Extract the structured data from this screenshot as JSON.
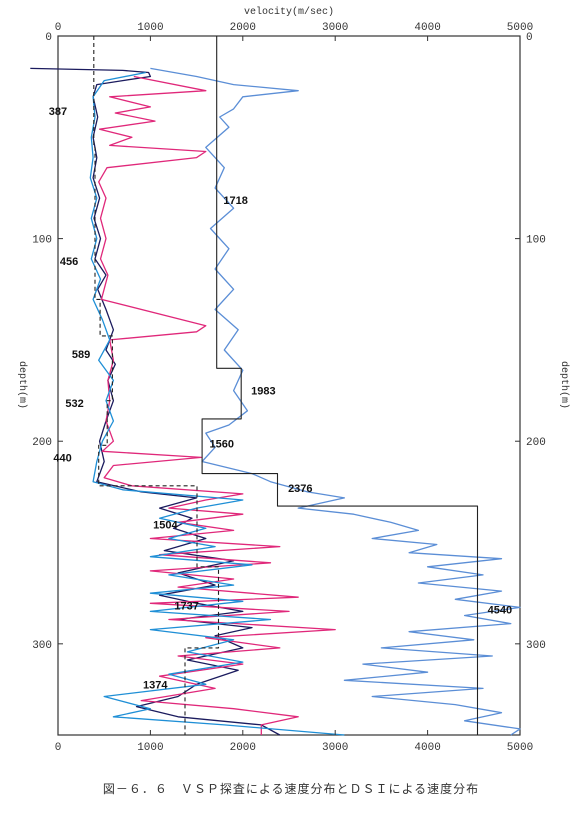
{
  "chart_data": {
    "type": "line",
    "title": "velocity(m/sec)",
    "xlabel": "velocity(m/sec)",
    "ylabel": "depth(m)",
    "xlim": [
      0,
      5000
    ],
    "ylim": [
      0,
      345
    ],
    "y_inverted": true,
    "x_ticks": [
      "0",
      "1000",
      "2000",
      "3000",
      "4000",
      "5000"
    ],
    "y_ticks": [
      "0",
      "100",
      "200",
      "300"
    ],
    "grid": false,
    "series": [
      {
        "color": "#1b1b5e",
        "points": [
          [
            -300,
            16
          ],
          [
            700,
            17
          ],
          [
            980,
            18
          ],
          [
            1000,
            20
          ],
          [
            700,
            22
          ],
          [
            420,
            24
          ],
          [
            380,
            30
          ],
          [
            430,
            40
          ],
          [
            380,
            50
          ],
          [
            420,
            60
          ],
          [
            380,
            70
          ],
          [
            450,
            80
          ],
          [
            390,
            90
          ],
          [
            460,
            100
          ],
          [
            400,
            110
          ],
          [
            520,
            118
          ],
          [
            430,
            125
          ],
          [
            520,
            135
          ],
          [
            600,
            145
          ],
          [
            520,
            155
          ],
          [
            620,
            162
          ],
          [
            540,
            170
          ],
          [
            600,
            180
          ],
          [
            520,
            190
          ],
          [
            450,
            200
          ],
          [
            500,
            210
          ],
          [
            420,
            220
          ],
          [
            900,
            225
          ],
          [
            1500,
            228
          ],
          [
            1100,
            233
          ],
          [
            1450,
            238
          ],
          [
            1250,
            243
          ],
          [
            1600,
            248
          ],
          [
            1150,
            254
          ],
          [
            1900,
            259
          ],
          [
            1300,
            265
          ],
          [
            1700,
            271
          ],
          [
            1100,
            276
          ],
          [
            1500,
            280
          ],
          [
            2000,
            284
          ],
          [
            1300,
            288
          ],
          [
            2100,
            292
          ],
          [
            1700,
            296
          ],
          [
            2000,
            302
          ],
          [
            1400,
            308
          ],
          [
            1950,
            313
          ],
          [
            1500,
            320
          ],
          [
            1300,
            326
          ],
          [
            850,
            331
          ],
          [
            1300,
            336
          ],
          [
            2200,
            340
          ],
          [
            2400,
            345
          ]
        ]
      },
      {
        "color": "#e0287a",
        "points": [
          [
            820,
            20
          ],
          [
            1600,
            27
          ],
          [
            560,
            30
          ],
          [
            1000,
            35
          ],
          [
            620,
            38
          ],
          [
            1050,
            42
          ],
          [
            450,
            46
          ],
          [
            800,
            50
          ],
          [
            560,
            54
          ],
          [
            1600,
            57
          ],
          [
            1500,
            60
          ],
          [
            530,
            65
          ],
          [
            440,
            72
          ],
          [
            520,
            80
          ],
          [
            460,
            90
          ],
          [
            520,
            100
          ],
          [
            460,
            110
          ],
          [
            540,
            118
          ],
          [
            470,
            130
          ],
          [
            1600,
            143
          ],
          [
            1500,
            146
          ],
          [
            560,
            150
          ],
          [
            600,
            160
          ],
          [
            540,
            170
          ],
          [
            560,
            180
          ],
          [
            520,
            190
          ],
          [
            600,
            200
          ],
          [
            480,
            205
          ],
          [
            1550,
            208
          ],
          [
            600,
            212
          ],
          [
            500,
            218
          ],
          [
            800,
            222
          ],
          [
            2000,
            226
          ],
          [
            1600,
            229
          ],
          [
            1200,
            233
          ],
          [
            2000,
            236
          ],
          [
            1300,
            240
          ],
          [
            1900,
            244
          ],
          [
            1000,
            248
          ],
          [
            2400,
            252
          ],
          [
            1100,
            256
          ],
          [
            2300,
            260
          ],
          [
            1000,
            264
          ],
          [
            1900,
            268
          ],
          [
            1300,
            272
          ],
          [
            2600,
            277
          ],
          [
            1000,
            280
          ],
          [
            2500,
            284
          ],
          [
            1200,
            288
          ],
          [
            3000,
            293
          ],
          [
            1600,
            297
          ],
          [
            2400,
            302
          ],
          [
            1300,
            306
          ],
          [
            2000,
            310
          ],
          [
            1100,
            316
          ],
          [
            1700,
            322
          ],
          [
            900,
            328
          ],
          [
            1900,
            332
          ],
          [
            2600,
            336
          ],
          [
            2200,
            340
          ],
          [
            2200,
            345
          ]
        ]
      },
      {
        "color": "#1f8fd6",
        "points": [
          [
            950,
            18
          ],
          [
            500,
            22
          ],
          [
            380,
            30
          ],
          [
            400,
            40
          ],
          [
            360,
            50
          ],
          [
            380,
            60
          ],
          [
            350,
            70
          ],
          [
            420,
            80
          ],
          [
            360,
            90
          ],
          [
            420,
            100
          ],
          [
            360,
            110
          ],
          [
            460,
            120
          ],
          [
            380,
            130
          ],
          [
            480,
            140
          ],
          [
            560,
            150
          ],
          [
            440,
            160
          ],
          [
            600,
            170
          ],
          [
            520,
            180
          ],
          [
            600,
            190
          ],
          [
            480,
            200
          ],
          [
            420,
            210
          ],
          [
            380,
            220
          ],
          [
            700,
            224
          ],
          [
            2000,
            229
          ],
          [
            1500,
            233
          ],
          [
            1100,
            238
          ],
          [
            1600,
            243
          ],
          [
            1200,
            248
          ],
          [
            1700,
            252
          ],
          [
            1000,
            257
          ],
          [
            2100,
            261
          ],
          [
            1200,
            266
          ],
          [
            1900,
            271
          ],
          [
            1000,
            275
          ],
          [
            2000,
            279
          ],
          [
            1000,
            284
          ],
          [
            2300,
            288
          ],
          [
            1000,
            293
          ],
          [
            1900,
            298
          ],
          [
            1400,
            304
          ],
          [
            2000,
            309
          ],
          [
            1200,
            315
          ],
          [
            1600,
            320
          ],
          [
            500,
            326
          ],
          [
            1000,
            332
          ],
          [
            600,
            336
          ],
          [
            1800,
            340
          ],
          [
            3100,
            345
          ]
        ]
      },
      {
        "color": "#5b8ed6",
        "points": [
          [
            1000,
            16
          ],
          [
            1500,
            20
          ],
          [
            1900,
            24
          ],
          [
            2600,
            27
          ],
          [
            2000,
            30
          ],
          [
            1900,
            36
          ],
          [
            1750,
            40
          ],
          [
            1850,
            45
          ],
          [
            1600,
            55
          ],
          [
            1800,
            65
          ],
          [
            1700,
            75
          ],
          [
            1900,
            85
          ],
          [
            1650,
            95
          ],
          [
            1850,
            105
          ],
          [
            1700,
            115
          ],
          [
            1900,
            125
          ],
          [
            1700,
            135
          ],
          [
            1950,
            145
          ],
          [
            1800,
            155
          ],
          [
            2000,
            165
          ],
          [
            1900,
            175
          ],
          [
            2050,
            185
          ],
          [
            1850,
            192
          ],
          [
            1600,
            196
          ],
          [
            1700,
            203
          ],
          [
            1560,
            210
          ],
          [
            2100,
            216
          ],
          [
            2300,
            220
          ],
          [
            2700,
            225
          ],
          [
            3100,
            228
          ],
          [
            2600,
            233
          ],
          [
            3200,
            236
          ],
          [
            3600,
            240
          ],
          [
            3900,
            244
          ],
          [
            3400,
            248
          ],
          [
            4100,
            251
          ],
          [
            3800,
            255
          ],
          [
            4800,
            258
          ],
          [
            4000,
            262
          ],
          [
            4600,
            266
          ],
          [
            3900,
            270
          ],
          [
            4800,
            274
          ],
          [
            4300,
            278
          ],
          [
            5000,
            282
          ],
          [
            4400,
            286
          ],
          [
            4900,
            290
          ],
          [
            3800,
            294
          ],
          [
            4500,
            298
          ],
          [
            3500,
            302
          ],
          [
            4700,
            306
          ],
          [
            3300,
            310
          ],
          [
            4000,
            314
          ],
          [
            3100,
            318
          ],
          [
            4600,
            322
          ],
          [
            3400,
            326
          ],
          [
            4300,
            330
          ],
          [
            4800,
            334
          ],
          [
            4400,
            338
          ],
          [
            5000,
            342
          ],
          [
            4900,
            345
          ]
        ]
      },
      {
        "color": "#222222",
        "style": "dashed",
        "points": [
          [
            387,
            0
          ],
          [
            387,
            55
          ],
          [
            400,
            55
          ],
          [
            400,
            130
          ],
          [
            456,
            130
          ],
          [
            456,
            148
          ],
          [
            589,
            148
          ],
          [
            589,
            180
          ],
          [
            532,
            180
          ],
          [
            532,
            202
          ],
          [
            440,
            202
          ],
          [
            440,
            222
          ],
          [
            1504,
            222
          ],
          [
            1504,
            262
          ],
          [
            1737,
            262
          ],
          [
            1737,
            302
          ],
          [
            1374,
            302
          ],
          [
            1374,
            345
          ]
        ]
      },
      {
        "color": "#222222",
        "style": "solid",
        "points": [
          [
            1718,
            0
          ],
          [
            1718,
            164
          ],
          [
            1983,
            164
          ],
          [
            1983,
            189
          ],
          [
            1560,
            189
          ],
          [
            1560,
            216
          ],
          [
            2376,
            216
          ],
          [
            2376,
            232
          ],
          [
            4540,
            232
          ],
          [
            4540,
            345
          ]
        ]
      }
    ],
    "annotations": [
      {
        "text": "387",
        "x": -100,
        "y": 39
      },
      {
        "text": "1718",
        "x": 1790,
        "y": 83
      },
      {
        "text": "456",
        "x": 20,
        "y": 113
      },
      {
        "text": "589",
        "x": 150,
        "y": 159
      },
      {
        "text": "1983",
        "x": 2090,
        "y": 177
      },
      {
        "text": "532",
        "x": 80,
        "y": 183
      },
      {
        "text": "1560",
        "x": 1640,
        "y": 203
      },
      {
        "text": "440",
        "x": -50,
        "y": 210
      },
      {
        "text": "2376",
        "x": 2490,
        "y": 225
      },
      {
        "text": "1504",
        "x": 1030,
        "y": 243
      },
      {
        "text": "4540",
        "x": 4650,
        "y": 285
      },
      {
        "text": "1737",
        "x": 1260,
        "y": 283
      },
      {
        "text": "1374",
        "x": 920,
        "y": 322
      }
    ]
  },
  "caption": "図－６．６　ＶＳＰ探査による速度分布とＤＳＩによる速度分布"
}
